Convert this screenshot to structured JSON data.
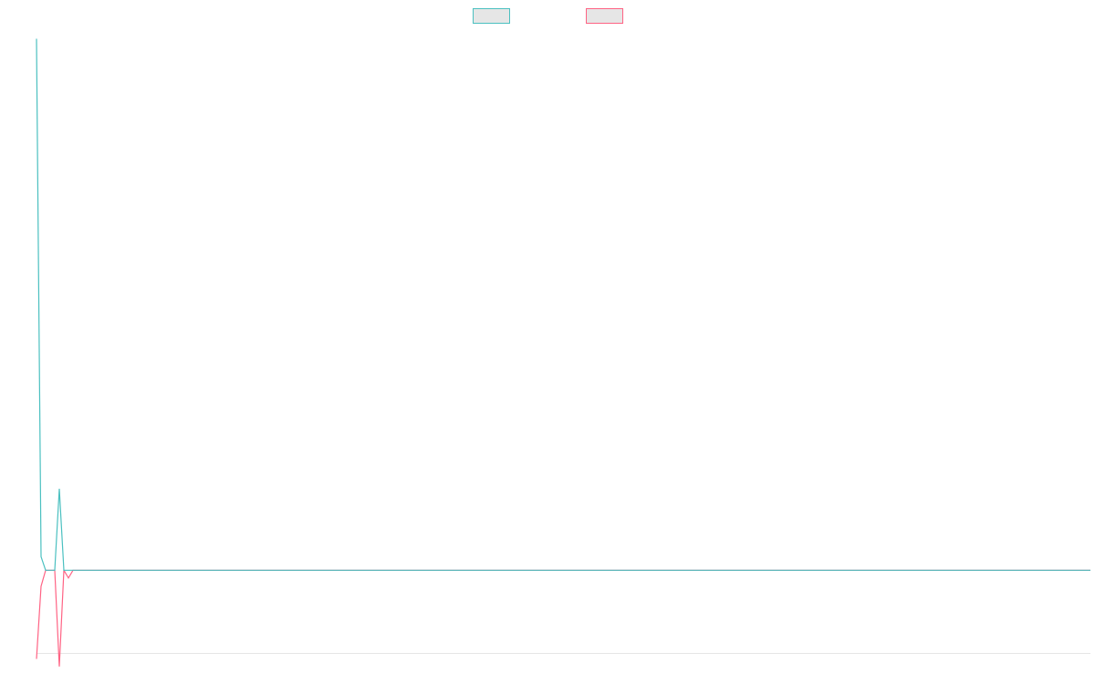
{
  "chart_data": {
    "type": "line",
    "title": "",
    "xlabel": "",
    "ylabel": "",
    "legend": {
      "position": "top-center",
      "entries": [
        {
          "name": "",
          "color": "#4bc0c0",
          "fill": "#e6e6e6"
        },
        {
          "name": "",
          "color": "#ff6384",
          "fill": "#e6e6e6"
        }
      ]
    },
    "grid": false,
    "xlim": [
      0,
      231
    ],
    "ylim": [
      -14,
      91
    ],
    "series": [
      {
        "name": "",
        "color": "#4bc0c0",
        "points": [
          [
            0,
            90
          ],
          [
            1,
            2.3
          ],
          [
            2,
            0
          ],
          [
            3,
            0
          ],
          [
            4,
            0
          ],
          [
            5,
            13.8
          ],
          [
            6,
            0
          ],
          [
            7,
            0
          ],
          [
            231,
            0
          ]
        ]
      },
      {
        "name": "",
        "color": "#ff6384",
        "points": [
          [
            0,
            -15
          ],
          [
            1,
            -2.7
          ],
          [
            2,
            0
          ],
          [
            3,
            0
          ],
          [
            4,
            0
          ],
          [
            5,
            -16.3
          ],
          [
            6,
            0
          ],
          [
            7,
            -1.3
          ],
          [
            8,
            0
          ],
          [
            231,
            0
          ]
        ]
      }
    ]
  }
}
